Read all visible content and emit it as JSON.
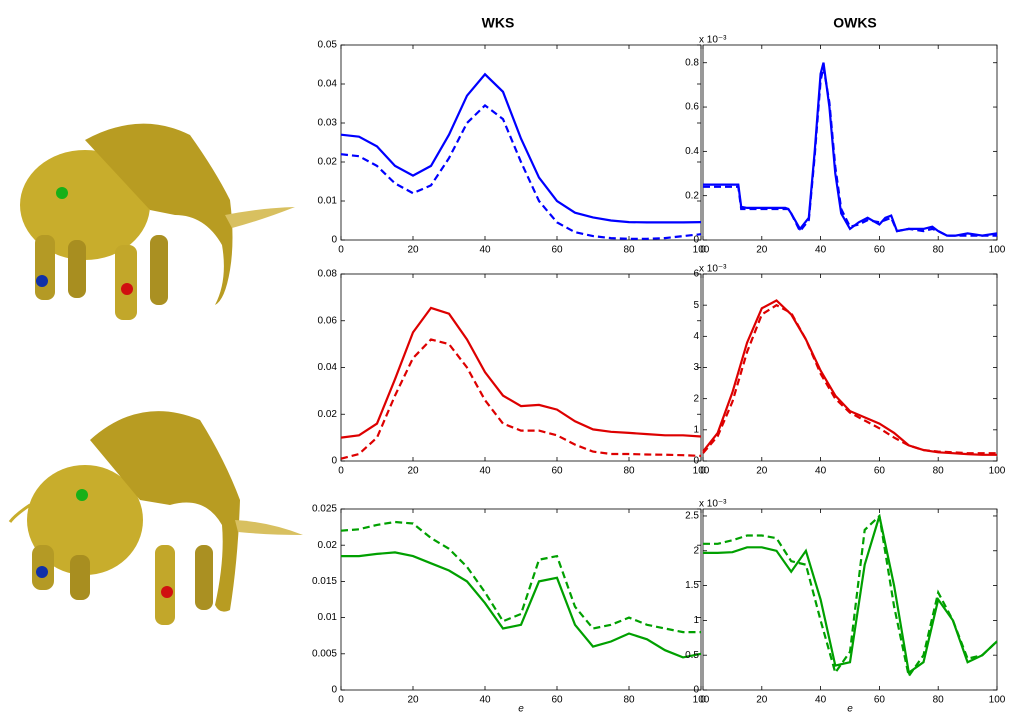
{
  "column_titles": [
    "WKS",
    "OWKS"
  ],
  "chart_data": [
    {
      "type": "line",
      "xlim": [
        0,
        100
      ],
      "xticks": [
        0,
        20,
        40,
        60,
        80,
        100
      ],
      "ylim": [
        0,
        0.05
      ],
      "yticks": [
        0,
        0.01,
        0.02,
        0.03,
        0.04,
        0.05
      ],
      "x": [
        0,
        5,
        10,
        15,
        20,
        25,
        30,
        35,
        40,
        45,
        50,
        55,
        60,
        65,
        70,
        75,
        80,
        85,
        90,
        95,
        100
      ],
      "series": [
        {
          "color": "#0000ff",
          "style": "solid",
          "values": [
            0.027,
            0.0265,
            0.024,
            0.019,
            0.0165,
            0.019,
            0.027,
            0.037,
            0.0425,
            0.038,
            0.026,
            0.016,
            0.01,
            0.007,
            0.0058,
            0.005,
            0.0046,
            0.0045,
            0.0045,
            0.0045,
            0.0046
          ]
        },
        {
          "color": "#0000ff",
          "style": "dashed",
          "values": [
            0.022,
            0.0215,
            0.019,
            0.0145,
            0.012,
            0.014,
            0.021,
            0.03,
            0.0345,
            0.031,
            0.02,
            0.01,
            0.0045,
            0.002,
            0.001,
            0.0005,
            0.0003,
            0.0003,
            0.0005,
            0.001,
            0.0015
          ]
        }
      ]
    },
    {
      "type": "line",
      "xlim": [
        0,
        100
      ],
      "xticks": [
        0,
        20,
        40,
        60,
        80,
        100
      ],
      "ylim": [
        0,
        0.88
      ],
      "yticks": [
        0,
        0.2,
        0.4,
        0.6,
        0.8
      ],
      "y_multiplier": "x 10⁻³",
      "x": [
        0,
        12,
        13,
        15,
        28,
        29,
        30,
        33,
        36,
        38,
        40,
        41,
        43,
        45,
        47,
        50,
        53,
        56,
        60,
        62,
        64,
        66,
        70,
        75,
        78,
        80,
        83,
        86,
        90,
        95,
        100
      ],
      "series": [
        {
          "color": "#0000ff",
          "style": "solid",
          "values": [
            0.25,
            0.25,
            0.15,
            0.145,
            0.145,
            0.14,
            0.12,
            0.05,
            0.1,
            0.4,
            0.75,
            0.8,
            0.6,
            0.3,
            0.12,
            0.05,
            0.08,
            0.1,
            0.07,
            0.1,
            0.11,
            0.04,
            0.05,
            0.05,
            0.06,
            0.04,
            0.02,
            0.02,
            0.03,
            0.02,
            0.03
          ]
        },
        {
          "color": "#0000ff",
          "style": "dashed",
          "values": [
            0.24,
            0.24,
            0.14,
            0.14,
            0.14,
            0.14,
            0.12,
            0.04,
            0.09,
            0.38,
            0.72,
            0.78,
            0.62,
            0.33,
            0.14,
            0.06,
            0.07,
            0.09,
            0.08,
            0.09,
            0.1,
            0.04,
            0.05,
            0.04,
            0.05,
            0.04,
            0.02,
            0.02,
            0.02,
            0.02,
            0.02
          ]
        }
      ]
    },
    {
      "type": "line",
      "xlim": [
        0,
        100
      ],
      "xticks": [
        0,
        20,
        40,
        60,
        80,
        100
      ],
      "ylim": [
        0,
        0.08
      ],
      "yticks": [
        0,
        0.02,
        0.04,
        0.06,
        0.08
      ],
      "x": [
        0,
        5,
        10,
        15,
        20,
        25,
        30,
        35,
        40,
        45,
        50,
        55,
        60,
        65,
        70,
        75,
        80,
        85,
        90,
        95,
        100
      ],
      "series": [
        {
          "color": "#dd0000",
          "style": "solid",
          "values": [
            0.01,
            0.011,
            0.016,
            0.035,
            0.055,
            0.0655,
            0.063,
            0.052,
            0.038,
            0.028,
            0.0235,
            0.024,
            0.022,
            0.017,
            0.0135,
            0.0125,
            0.012,
            0.0115,
            0.011,
            0.011,
            0.0105
          ]
        },
        {
          "color": "#dd0000",
          "style": "dashed",
          "values": [
            0.001,
            0.003,
            0.01,
            0.028,
            0.044,
            0.052,
            0.05,
            0.04,
            0.026,
            0.016,
            0.013,
            0.013,
            0.011,
            0.007,
            0.004,
            0.003,
            0.003,
            0.0028,
            0.0027,
            0.0025,
            0.0022
          ]
        }
      ]
    },
    {
      "type": "line",
      "xlim": [
        0,
        100
      ],
      "xticks": [
        0,
        20,
        40,
        60,
        80,
        100
      ],
      "ylim": [
        0,
        6
      ],
      "yticks": [
        0,
        1,
        2,
        3,
        4,
        5,
        6
      ],
      "y_multiplier": "x 10⁻³",
      "x": [
        0,
        5,
        10,
        15,
        20,
        25,
        30,
        35,
        40,
        45,
        50,
        55,
        60,
        65,
        70,
        75,
        80,
        85,
        90,
        95,
        100
      ],
      "series": [
        {
          "color": "#dd0000",
          "style": "solid",
          "values": [
            0.3,
            0.9,
            2.2,
            3.8,
            4.9,
            5.15,
            4.7,
            3.9,
            2.9,
            2.1,
            1.6,
            1.4,
            1.2,
            0.9,
            0.5,
            0.35,
            0.28,
            0.25,
            0.22,
            0.2,
            0.2
          ]
        },
        {
          "color": "#dd0000",
          "style": "dashed",
          "values": [
            0.25,
            0.8,
            1.9,
            3.5,
            4.7,
            5.0,
            4.75,
            3.9,
            2.8,
            2.0,
            1.55,
            1.3,
            1.05,
            0.75,
            0.5,
            0.35,
            0.3,
            0.28,
            0.25,
            0.25,
            0.25
          ]
        }
      ]
    },
    {
      "type": "line",
      "xlim": [
        0,
        100
      ],
      "xticks": [
        0,
        20,
        40,
        60,
        80,
        100
      ],
      "ylim": [
        0,
        0.025
      ],
      "yticks": [
        0,
        0.005,
        0.01,
        0.015,
        0.02,
        0.025
      ],
      "xlabel": "e",
      "x": [
        0,
        5,
        10,
        15,
        20,
        25,
        30,
        35,
        40,
        45,
        50,
        55,
        60,
        65,
        70,
        75,
        80,
        85,
        90,
        95,
        100
      ],
      "series": [
        {
          "color": "#00a000",
          "style": "solid",
          "values": [
            0.0185,
            0.0185,
            0.0188,
            0.019,
            0.0185,
            0.0175,
            0.0165,
            0.015,
            0.012,
            0.0085,
            0.009,
            0.015,
            0.0155,
            0.009,
            0.006,
            0.0067,
            0.0078,
            0.007,
            0.0055,
            0.0045,
            0.005
          ]
        },
        {
          "color": "#00a000",
          "style": "dashed",
          "values": [
            0.022,
            0.0222,
            0.0228,
            0.0232,
            0.023,
            0.021,
            0.0195,
            0.017,
            0.0135,
            0.0095,
            0.0105,
            0.018,
            0.0185,
            0.0115,
            0.0085,
            0.009,
            0.01,
            0.009,
            0.0085,
            0.008,
            0.008
          ]
        }
      ]
    },
    {
      "type": "line",
      "xlim": [
        0,
        100
      ],
      "xticks": [
        0,
        20,
        40,
        60,
        80,
        100
      ],
      "ylim": [
        0,
        2.6
      ],
      "yticks": [
        0,
        0.5,
        1,
        1.5,
        2,
        2.5
      ],
      "y_multiplier": "x 10⁻³",
      "xlabel": "e",
      "x": [
        0,
        5,
        10,
        15,
        20,
        25,
        30,
        35,
        40,
        45,
        50,
        55,
        60,
        65,
        70,
        75,
        80,
        85,
        90,
        95,
        100
      ],
      "series": [
        {
          "color": "#00a000",
          "style": "solid",
          "values": [
            1.97,
            1.97,
            1.98,
            2.05,
            2.05,
            2.0,
            1.7,
            2.0,
            1.3,
            0.35,
            0.4,
            1.8,
            2.5,
            1.5,
            0.25,
            0.4,
            1.3,
            1.0,
            0.4,
            0.5,
            0.7
          ]
        },
        {
          "color": "#00a000",
          "style": "dashed",
          "values": [
            2.1,
            2.1,
            2.15,
            2.22,
            2.22,
            2.18,
            1.85,
            1.8,
            1.0,
            0.25,
            0.55,
            2.3,
            2.5,
            1.2,
            0.2,
            0.5,
            1.4,
            1.0,
            0.45,
            0.5,
            0.7
          ]
        }
      ]
    }
  ]
}
